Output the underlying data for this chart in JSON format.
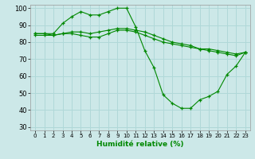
{
  "xlabel": "Humidité relative (%)",
  "xlim": [
    -0.5,
    23.5
  ],
  "ylim": [
    28,
    102
  ],
  "yticks": [
    30,
    40,
    50,
    60,
    70,
    80,
    90,
    100
  ],
  "xticks": [
    0,
    1,
    2,
    3,
    4,
    5,
    6,
    7,
    8,
    9,
    10,
    11,
    12,
    13,
    14,
    15,
    16,
    17,
    18,
    19,
    20,
    21,
    22,
    23
  ],
  "background_color": "#cce8e8",
  "grid_color": "#b0d8d8",
  "line_color": "#008800",
  "lines": [
    {
      "x": [
        0,
        1,
        2,
        3,
        4,
        5,
        6,
        7,
        8,
        9,
        10,
        11,
        12,
        13,
        14,
        15,
        16,
        17,
        18,
        19,
        20,
        21,
        22,
        23
      ],
      "y": [
        85,
        85,
        85,
        91,
        95,
        98,
        96,
        96,
        98,
        100,
        100,
        89,
        75,
        65,
        49,
        44,
        41,
        41,
        46,
        48,
        51,
        61,
        66,
        74
      ]
    },
    {
      "x": [
        0,
        1,
        2,
        3,
        4,
        5,
        6,
        7,
        8,
        9,
        10,
        11,
        12,
        13,
        14,
        15,
        16,
        17,
        18,
        19,
        20,
        21,
        22,
        23
      ],
      "y": [
        85,
        85,
        84,
        85,
        86,
        86,
        85,
        86,
        87,
        88,
        88,
        87,
        86,
        84,
        82,
        80,
        79,
        78,
        76,
        76,
        75,
        74,
        73,
        74
      ]
    },
    {
      "x": [
        0,
        1,
        2,
        3,
        4,
        5,
        6,
        7,
        8,
        9,
        10,
        11,
        12,
        13,
        14,
        15,
        16,
        17,
        18,
        19,
        20,
        21,
        22,
        23
      ],
      "y": [
        84,
        84,
        84,
        85,
        85,
        84,
        83,
        83,
        85,
        87,
        87,
        86,
        84,
        82,
        80,
        79,
        78,
        77,
        76,
        75,
        74,
        73,
        72,
        74
      ]
    }
  ]
}
